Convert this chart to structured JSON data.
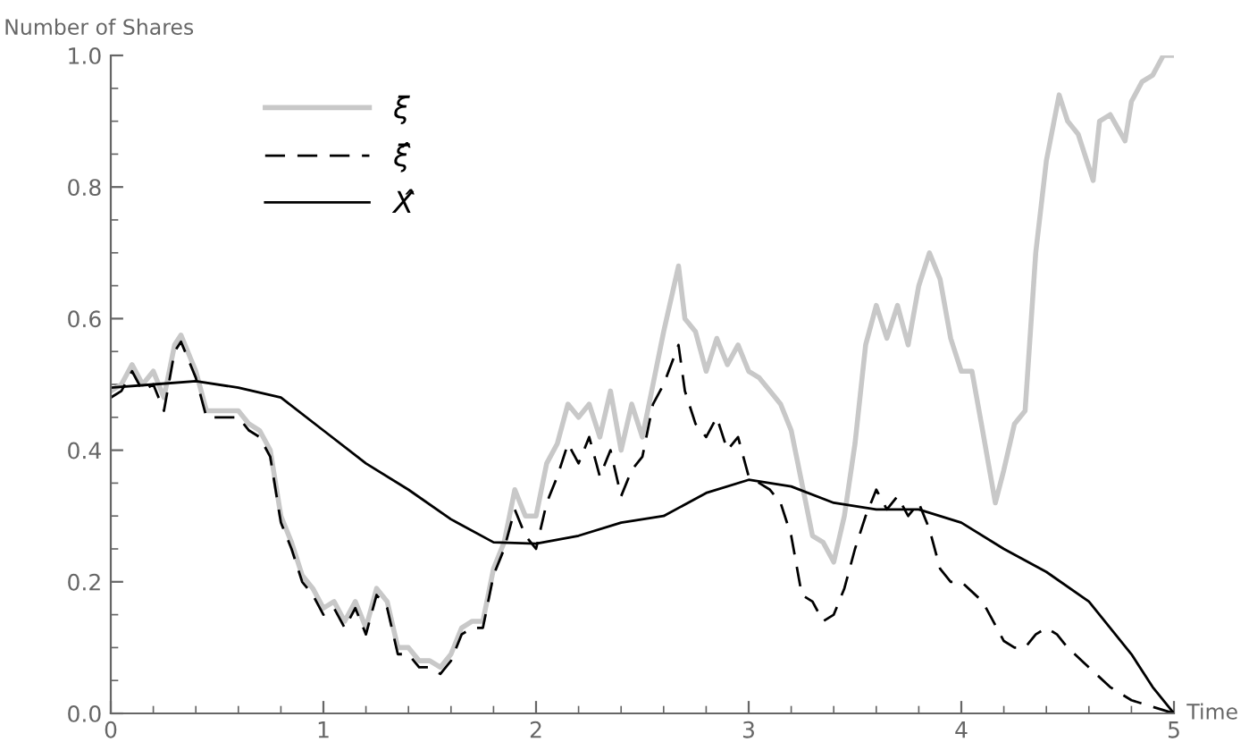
{
  "chart_data": {
    "type": "line",
    "xlabel": "Time",
    "ylabel": "Number of Shares",
    "xlim": [
      0,
      5
    ],
    "ylim": [
      0,
      1.0
    ],
    "xticks": [
      0,
      1,
      2,
      3,
      4,
      5
    ],
    "yticks": [
      {
        "value": 0,
        "label": "0.0"
      },
      0.2,
      0.4,
      0.6,
      0.8,
      {
        "value": 1.0,
        "label": "1.0"
      }
    ],
    "grid": false,
    "legend": "top left",
    "marker": "none",
    "series": [
      {
        "name": "ξ",
        "color": "#c8c8c8",
        "line_style": "solid",
        "x": [
          0,
          0.05,
          0.1,
          0.15,
          0.2,
          0.25,
          0.3,
          0.33,
          0.4,
          0.45,
          0.5,
          0.6,
          0.65,
          0.7,
          0.75,
          0.8,
          0.85,
          0.9,
          0.95,
          1.0,
          1.05,
          1.1,
          1.15,
          1.2,
          1.25,
          1.3,
          1.35,
          1.4,
          1.45,
          1.5,
          1.55,
          1.6,
          1.65,
          1.7,
          1.75,
          1.8,
          1.85,
          1.9,
          1.95,
          2.0,
          2.05,
          2.1,
          2.15,
          2.2,
          2.25,
          2.3,
          2.35,
          2.4,
          2.45,
          2.5,
          2.55,
          2.6,
          2.67,
          2.7,
          2.75,
          2.8,
          2.85,
          2.9,
          2.95,
          3.0,
          3.05,
          3.1,
          3.15,
          3.2,
          3.25,
          3.3,
          3.35,
          3.4,
          3.45,
          3.5,
          3.55,
          3.6,
          3.65,
          3.7,
          3.75,
          3.8,
          3.85,
          3.9,
          3.95,
          4.0,
          4.05,
          4.1,
          4.16,
          4.2,
          4.25,
          4.3,
          4.35,
          4.4,
          4.46,
          4.5,
          4.55,
          4.62,
          4.65,
          4.7,
          4.77,
          4.8,
          4.85,
          4.9,
          4.95,
          5.0
        ],
        "values": [
          0.49,
          0.5,
          0.53,
          0.5,
          0.52,
          0.48,
          0.56,
          0.575,
          0.52,
          0.46,
          0.46,
          0.46,
          0.44,
          0.43,
          0.4,
          0.3,
          0.26,
          0.21,
          0.19,
          0.16,
          0.17,
          0.14,
          0.17,
          0.13,
          0.19,
          0.17,
          0.1,
          0.1,
          0.08,
          0.08,
          0.07,
          0.09,
          0.13,
          0.14,
          0.14,
          0.22,
          0.26,
          0.34,
          0.3,
          0.3,
          0.38,
          0.41,
          0.47,
          0.45,
          0.47,
          0.42,
          0.49,
          0.4,
          0.47,
          0.42,
          0.5,
          0.58,
          0.68,
          0.6,
          0.58,
          0.52,
          0.57,
          0.53,
          0.56,
          0.52,
          0.51,
          0.49,
          0.47,
          0.43,
          0.35,
          0.27,
          0.26,
          0.23,
          0.3,
          0.41,
          0.56,
          0.62,
          0.57,
          0.62,
          0.56,
          0.65,
          0.7,
          0.66,
          0.57,
          0.52,
          0.52,
          0.43,
          0.32,
          0.37,
          0.44,
          0.46,
          0.7,
          0.84,
          0.94,
          0.9,
          0.88,
          0.81,
          0.9,
          0.91,
          0.87,
          0.93,
          0.96,
          0.97,
          1.0,
          1.0
        ]
      },
      {
        "name": "ξ̂",
        "color": "#000000",
        "line_style": "dashed",
        "x": [
          0,
          0.05,
          0.1,
          0.15,
          0.2,
          0.25,
          0.3,
          0.33,
          0.4,
          0.45,
          0.5,
          0.6,
          0.65,
          0.7,
          0.75,
          0.8,
          0.85,
          0.9,
          0.95,
          1.0,
          1.05,
          1.1,
          1.15,
          1.2,
          1.25,
          1.3,
          1.35,
          1.4,
          1.45,
          1.5,
          1.55,
          1.6,
          1.65,
          1.7,
          1.75,
          1.8,
          1.85,
          1.9,
          1.95,
          2.0,
          2.05,
          2.1,
          2.15,
          2.2,
          2.25,
          2.3,
          2.35,
          2.4,
          2.45,
          2.5,
          2.55,
          2.6,
          2.67,
          2.7,
          2.75,
          2.8,
          2.85,
          2.9,
          2.95,
          3.0,
          3.05,
          3.1,
          3.15,
          3.2,
          3.25,
          3.3,
          3.35,
          3.4,
          3.45,
          3.5,
          3.55,
          3.6,
          3.65,
          3.7,
          3.75,
          3.8,
          3.85,
          3.9,
          3.95,
          4.0,
          4.1,
          4.15,
          4.2,
          4.25,
          4.3,
          4.35,
          4.4,
          4.45,
          4.5,
          4.6,
          4.7,
          4.8,
          4.9,
          5.0
        ],
        "values": [
          0.48,
          0.49,
          0.52,
          0.49,
          0.5,
          0.46,
          0.55,
          0.565,
          0.51,
          0.45,
          0.45,
          0.45,
          0.43,
          0.42,
          0.39,
          0.29,
          0.25,
          0.2,
          0.18,
          0.15,
          0.16,
          0.13,
          0.16,
          0.12,
          0.18,
          0.16,
          0.09,
          0.09,
          0.07,
          0.07,
          0.06,
          0.08,
          0.12,
          0.13,
          0.13,
          0.21,
          0.25,
          0.31,
          0.27,
          0.25,
          0.32,
          0.36,
          0.41,
          0.38,
          0.42,
          0.36,
          0.4,
          0.33,
          0.37,
          0.39,
          0.47,
          0.5,
          0.56,
          0.49,
          0.44,
          0.42,
          0.45,
          0.4,
          0.42,
          0.36,
          0.35,
          0.34,
          0.32,
          0.27,
          0.18,
          0.17,
          0.14,
          0.15,
          0.19,
          0.25,
          0.3,
          0.34,
          0.31,
          0.33,
          0.3,
          0.32,
          0.28,
          0.22,
          0.2,
          0.2,
          0.17,
          0.14,
          0.11,
          0.1,
          0.1,
          0.12,
          0.13,
          0.12,
          0.1,
          0.07,
          0.04,
          0.02,
          0.01,
          0.0
        ]
      },
      {
        "name": "X̂",
        "color": "#000000",
        "line_style": "solid",
        "x": [
          0,
          0.2,
          0.4,
          0.6,
          0.8,
          1.0,
          1.2,
          1.4,
          1.6,
          1.8,
          2.0,
          2.2,
          2.4,
          2.6,
          2.8,
          3.0,
          3.2,
          3.4,
          3.6,
          3.8,
          4.0,
          4.2,
          4.4,
          4.6,
          4.8,
          4.9,
          5.0
        ],
        "values": [
          0.495,
          0.5,
          0.505,
          0.495,
          0.48,
          0.43,
          0.38,
          0.34,
          0.295,
          0.26,
          0.258,
          0.27,
          0.29,
          0.3,
          0.335,
          0.355,
          0.345,
          0.32,
          0.31,
          0.31,
          0.29,
          0.25,
          0.215,
          0.17,
          0.09,
          0.04,
          0.0
        ]
      }
    ]
  }
}
